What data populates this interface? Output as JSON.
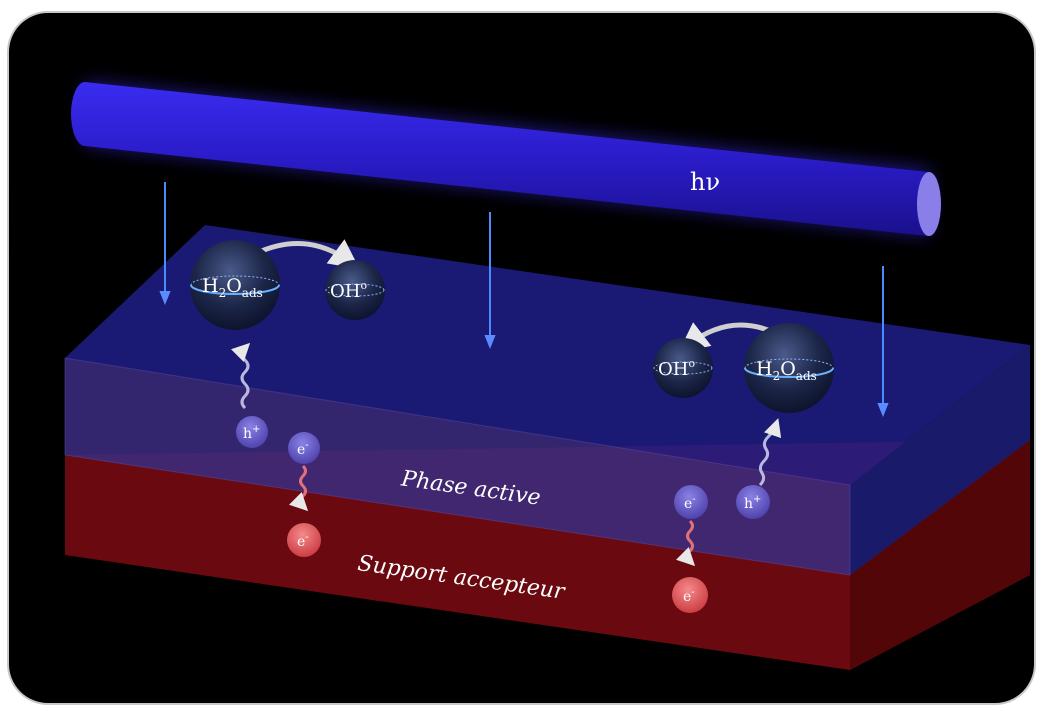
{
  "light": {
    "label": "hν"
  },
  "layers": {
    "active": "Phase active",
    "support": "Support accepteur"
  },
  "species": {
    "h2o_main": "H",
    "h2o_sub2": "2",
    "h2o_o": "O",
    "h2o_ads": "ads",
    "oh_main": "OH",
    "oh_sup": "o",
    "hole_main": "h",
    "hole_sup": "+",
    "electron_main": "e",
    "electron_sup": "-"
  },
  "colors": {
    "background": "#000000",
    "light_tube": "#2a1cc8",
    "active_phase": "#2a1e8c",
    "support": "#7a0c12",
    "electron_active": "#6a5cc8",
    "electron_support": "#e0595e"
  }
}
